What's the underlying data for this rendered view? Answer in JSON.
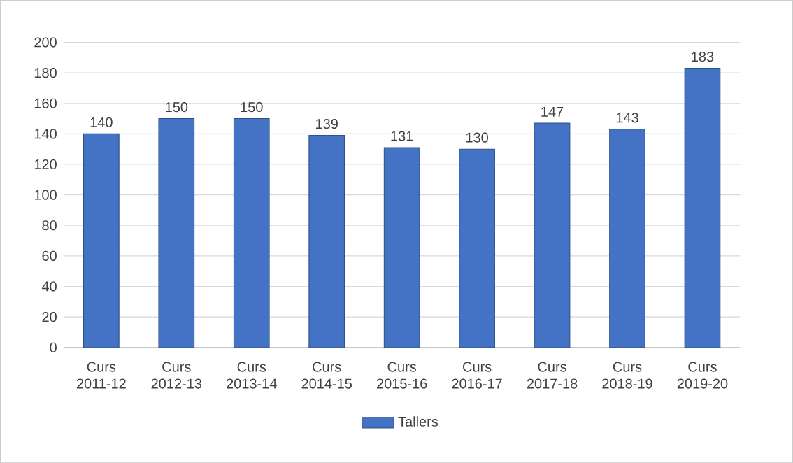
{
  "chart_data": {
    "type": "bar",
    "categories": [
      "Curs 2011-12",
      "Curs 2012-13",
      "Curs 2013-14",
      "Curs 2014-15",
      "Curs 2015-16",
      "Curs 2016-17",
      "Curs 2017-18",
      "Curs 2018-19",
      "Curs 2019-20"
    ],
    "series": [
      {
        "name": "Tallers",
        "color": "#4472c4",
        "values": [
          140,
          150,
          150,
          139,
          131,
          130,
          147,
          143,
          183
        ]
      }
    ],
    "ylim": [
      0,
      200
    ],
    "yticks": [
      0,
      20,
      40,
      60,
      80,
      100,
      120,
      140,
      160,
      180,
      200
    ],
    "grid": "y",
    "legend": "bottom",
    "data_labels": true
  }
}
